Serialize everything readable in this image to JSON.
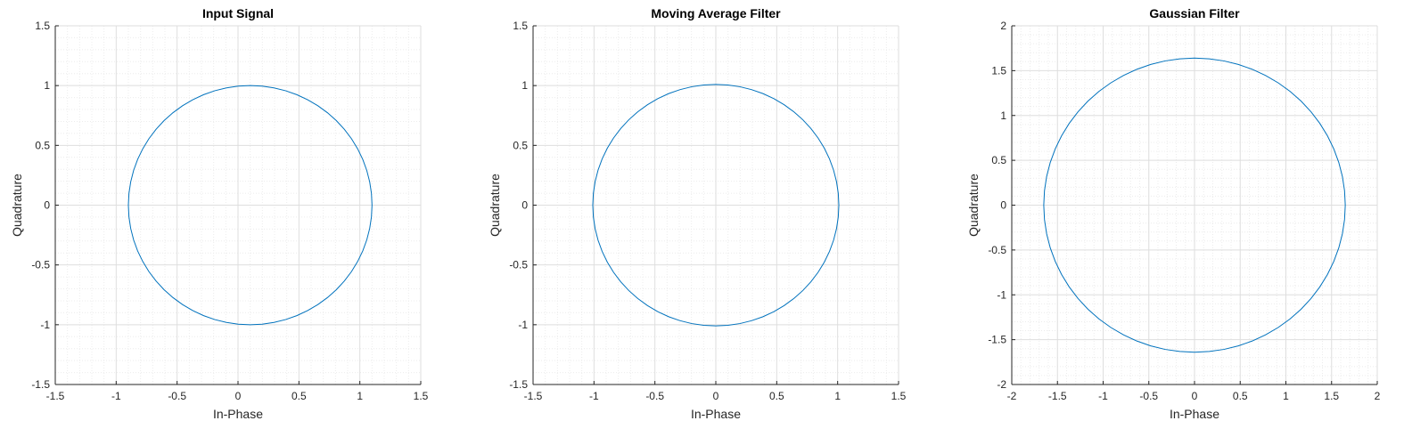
{
  "style": {
    "series_color": "#0072BD",
    "major_grid_color": "#dedede",
    "minor_grid_color": "#ececec",
    "axis_color": "#262626"
  },
  "chart_data": [
    {
      "type": "line",
      "title": "Input Signal",
      "xlabel": "In-Phase",
      "ylabel": "Quadrature",
      "xlim": [
        -1.5,
        1.5
      ],
      "ylim": [
        -1.5,
        1.5
      ],
      "xticks": [
        "-1.5",
        "-1",
        "-0.5",
        "0",
        "0.5",
        "1",
        "1.5"
      ],
      "yticks": [
        "-1.5",
        "-1",
        "-0.5",
        "0",
        "0.5",
        "1",
        "1.5"
      ],
      "grid": true,
      "minor_grid": true,
      "series": [
        {
          "center": [
            0.1,
            0
          ],
          "radius": [
            1.0,
            1.0
          ],
          "points": 64
        }
      ]
    },
    {
      "type": "line",
      "title": "Moving Average Filter",
      "xlabel": "In-Phase",
      "ylabel": "Quadrature",
      "xlim": [
        -1.5,
        1.5
      ],
      "ylim": [
        -1.5,
        1.5
      ],
      "xticks": [
        "-1.5",
        "-1",
        "-0.5",
        "0",
        "0.5",
        "1",
        "1.5"
      ],
      "yticks": [
        "-1.5",
        "-1",
        "-0.5",
        "0",
        "0.5",
        "1",
        "1.5"
      ],
      "grid": true,
      "minor_grid": true,
      "series": [
        {
          "center": [
            0.0,
            0
          ],
          "radius": [
            1.01,
            1.01
          ],
          "points": 64
        }
      ]
    },
    {
      "type": "line",
      "title": "Gaussian Filter",
      "xlabel": "In-Phase",
      "ylabel": "Quadrature",
      "xlim": [
        -2,
        2
      ],
      "ylim": [
        -2,
        2
      ],
      "xticks": [
        "-2",
        "-1.5",
        "-1",
        "-0.5",
        "0",
        "0.5",
        "1",
        "1.5",
        "2"
      ],
      "yticks": [
        "-2",
        "-1.5",
        "-1",
        "-0.5",
        "0",
        "0.5",
        "1",
        "1.5",
        "2"
      ],
      "grid": true,
      "minor_grid": true,
      "series": [
        {
          "center": [
            0.0,
            0
          ],
          "radius": [
            1.65,
            1.64
          ],
          "points": 64
        }
      ]
    }
  ]
}
